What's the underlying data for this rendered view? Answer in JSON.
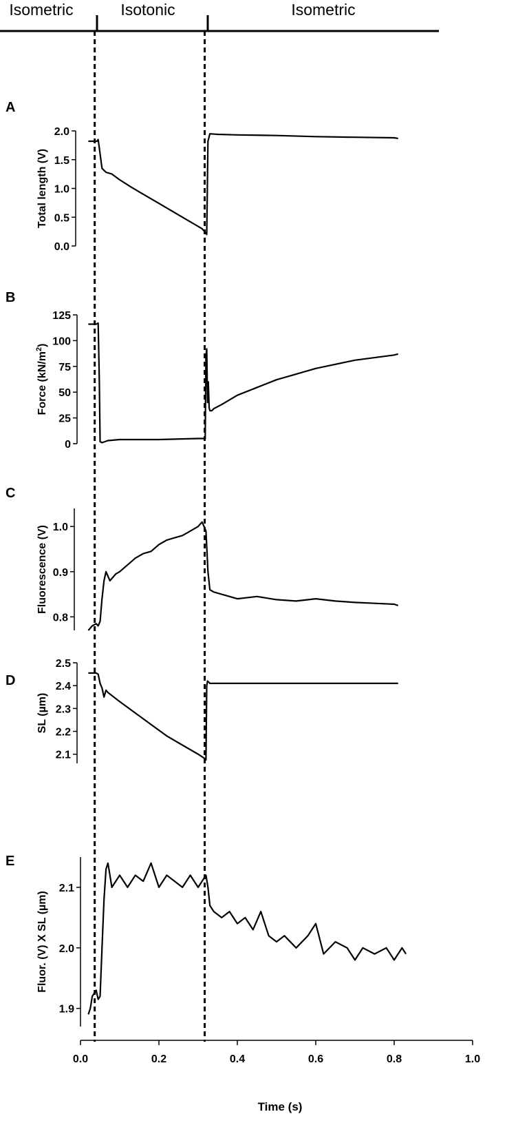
{
  "phases": [
    {
      "label": "Isometric",
      "x_start": 0.0,
      "x_end": 0.045
    },
    {
      "label": "Isotonic",
      "x_start": 0.045,
      "x_end": 0.322
    },
    {
      "label": "Isometric",
      "x_start": 0.322,
      "x_end": 0.9
    }
  ],
  "chart_data": [
    {
      "type": "line",
      "panel": "A",
      "xlabel": "",
      "ylabel": "Total length (V)",
      "ylim": [
        0.0,
        2.0
      ],
      "yticks": [
        0.0,
        0.5,
        1.0,
        1.5,
        2.0
      ],
      "ytick_labels": [
        "0.0",
        "0.5",
        "1.0",
        "1.5",
        "2.0"
      ],
      "series": [
        {
          "x": [
            0.02,
            0.042,
            0.045,
            0.05,
            0.055,
            0.065,
            0.08,
            0.1,
            0.13,
            0.16,
            0.2,
            0.24,
            0.28,
            0.31,
            0.32,
            0.322,
            0.325,
            0.33,
            0.35,
            0.4,
            0.5,
            0.6,
            0.7,
            0.8,
            0.81
          ],
          "y": [
            1.82,
            1.82,
            1.85,
            1.6,
            1.35,
            1.28,
            1.25,
            1.15,
            1.02,
            0.9,
            0.74,
            0.58,
            0.42,
            0.3,
            0.22,
            0.2,
            1.82,
            1.95,
            1.94,
            1.93,
            1.92,
            1.9,
            1.89,
            1.88,
            1.87
          ]
        }
      ]
    },
    {
      "type": "line",
      "panel": "B",
      "xlabel": "",
      "ylabel": "Force (kN/m²)",
      "ylabel_main": "Force (kN/m",
      "ylabel_sup": "2",
      "ylabel_end": ")",
      "ylim": [
        0,
        125
      ],
      "yticks": [
        0,
        25,
        50,
        75,
        100,
        125
      ],
      "ytick_labels": [
        "0",
        "25",
        "50",
        "75",
        "100",
        "125"
      ],
      "series": [
        {
          "x": [
            0.02,
            0.04,
            0.045,
            0.048,
            0.05,
            0.055,
            0.07,
            0.1,
            0.2,
            0.3,
            0.318,
            0.32,
            0.322,
            0.324,
            0.326,
            0.328,
            0.33,
            0.335,
            0.34,
            0.36,
            0.4,
            0.5,
            0.6,
            0.7,
            0.8,
            0.81
          ],
          "y": [
            116,
            116,
            117,
            60,
            2,
            1,
            3,
            4,
            4,
            5,
            5,
            85,
            92,
            40,
            60,
            35,
            32,
            32,
            34,
            38,
            47,
            62,
            73,
            81,
            86,
            87
          ]
        }
      ]
    },
    {
      "type": "line",
      "panel": "C",
      "xlabel": "",
      "ylabel": "Fluorescence (V)",
      "ylim": [
        0.77,
        1.04
      ],
      "yticks": [
        0.8,
        0.9,
        1.0
      ],
      "ytick_labels": [
        "0.8",
        "0.9",
        "1.0"
      ],
      "series": [
        {
          "x": [
            0.02,
            0.03,
            0.04,
            0.045,
            0.05,
            0.055,
            0.06,
            0.065,
            0.075,
            0.09,
            0.1,
            0.12,
            0.14,
            0.16,
            0.18,
            0.2,
            0.22,
            0.24,
            0.26,
            0.28,
            0.3,
            0.31,
            0.315,
            0.32,
            0.325,
            0.33,
            0.34,
            0.36,
            0.38,
            0.4,
            0.45,
            0.5,
            0.55,
            0.6,
            0.65,
            0.7,
            0.75,
            0.8,
            0.81
          ],
          "y": [
            0.77,
            0.78,
            0.785,
            0.78,
            0.79,
            0.84,
            0.88,
            0.9,
            0.88,
            0.895,
            0.9,
            0.915,
            0.93,
            0.94,
            0.945,
            0.96,
            0.97,
            0.975,
            0.98,
            0.99,
            1.0,
            1.01,
            1.0,
            0.99,
            0.9,
            0.86,
            0.855,
            0.85,
            0.845,
            0.84,
            0.845,
            0.838,
            0.835,
            0.84,
            0.835,
            0.832,
            0.83,
            0.828,
            0.825
          ]
        }
      ]
    },
    {
      "type": "line",
      "panel": "D",
      "xlabel": "",
      "ylabel": "SL (µm)",
      "ylim": [
        2.06,
        2.5
      ],
      "yticks": [
        2.1,
        2.2,
        2.3,
        2.4,
        2.5
      ],
      "ytick_labels": [
        "2.1",
        "2.2",
        "2.3",
        "2.4",
        "2.5"
      ],
      "series": [
        {
          "x": [
            0.02,
            0.04,
            0.045,
            0.05,
            0.055,
            0.06,
            0.065,
            0.07,
            0.1,
            0.14,
            0.18,
            0.22,
            0.26,
            0.3,
            0.318,
            0.32,
            0.322,
            0.324,
            0.33,
            0.35,
            0.4,
            0.5,
            0.6,
            0.7,
            0.8,
            0.81
          ],
          "y": [
            2.455,
            2.455,
            2.45,
            2.41,
            2.39,
            2.35,
            2.38,
            2.37,
            2.33,
            2.28,
            2.23,
            2.18,
            2.14,
            2.1,
            2.08,
            2.075,
            2.4,
            2.42,
            2.41,
            2.41,
            2.41,
            2.41,
            2.41,
            2.41,
            2.41,
            2.41
          ]
        }
      ]
    },
    {
      "type": "line",
      "panel": "E",
      "xlabel": "Time (s)",
      "ylabel": "Fluor. (V) X SL (µm)",
      "ylim": [
        1.87,
        2.15
      ],
      "yticks": [
        1.9,
        2.0,
        2.1
      ],
      "ytick_labels": [
        "1.9",
        "2.0",
        "2.1"
      ],
      "xlim": [
        0.0,
        1.0
      ],
      "xticks": [
        0.0,
        0.2,
        0.4,
        0.6,
        0.8,
        1.0
      ],
      "xtick_labels": [
        "0.0",
        "0.2",
        "0.4",
        "0.6",
        "0.8",
        "1.0"
      ],
      "series": [
        {
          "x": [
            0.02,
            0.025,
            0.03,
            0.04,
            0.045,
            0.05,
            0.055,
            0.06,
            0.065,
            0.07,
            0.075,
            0.08,
            0.09,
            0.1,
            0.12,
            0.14,
            0.16,
            0.18,
            0.2,
            0.22,
            0.24,
            0.26,
            0.28,
            0.3,
            0.31,
            0.32,
            0.325,
            0.33,
            0.34,
            0.36,
            0.38,
            0.4,
            0.42,
            0.44,
            0.46,
            0.48,
            0.5,
            0.52,
            0.55,
            0.58,
            0.6,
            0.62,
            0.65,
            0.68,
            0.7,
            0.72,
            0.75,
            0.78,
            0.8,
            0.82,
            0.83
          ],
          "y": [
            1.89,
            1.9,
            1.92,
            1.93,
            1.915,
            1.92,
            2.0,
            2.08,
            2.13,
            2.14,
            2.12,
            2.1,
            2.11,
            2.12,
            2.1,
            2.12,
            2.11,
            2.14,
            2.1,
            2.12,
            2.11,
            2.1,
            2.12,
            2.1,
            2.11,
            2.12,
            2.1,
            2.07,
            2.06,
            2.05,
            2.06,
            2.04,
            2.05,
            2.03,
            2.06,
            2.02,
            2.01,
            2.02,
            2.0,
            2.02,
            2.04,
            1.99,
            2.01,
            2.0,
            1.98,
            2.0,
            1.99,
            2.0,
            1.98,
            2.0,
            1.99
          ]
        }
      ]
    }
  ]
}
